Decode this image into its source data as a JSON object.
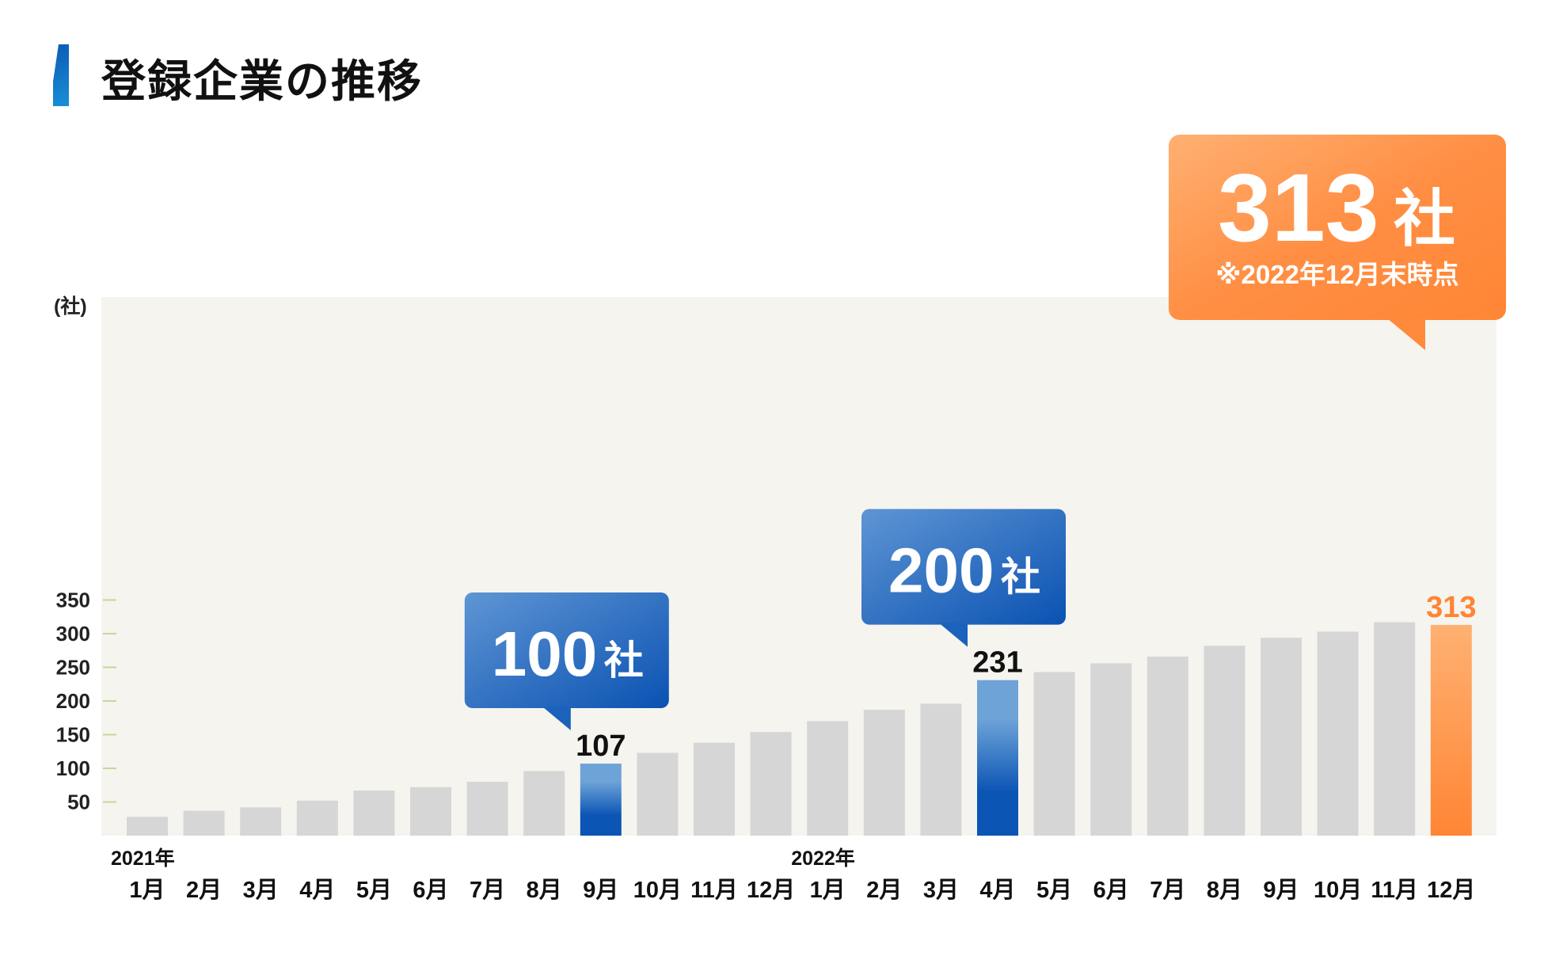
{
  "title": "登録企業の推移",
  "colors": {
    "plot_bg": "#f5f4ef",
    "bar_gray": "#d6d6d6",
    "bar_blue_top": "#6ea3d8",
    "bar_blue_bottom": "#0b55b5",
    "bar_orange_top": "#ffb172",
    "bar_orange_bottom": "#ff8534",
    "orange_label": "#ff8534",
    "tick_line": "#c9d49a"
  },
  "chart_data": {
    "type": "bar",
    "ylabel": "(社)",
    "ylim": [
      0,
      400
    ],
    "yticks": [
      50,
      100,
      150,
      200,
      250,
      300,
      350
    ],
    "year_labels": [
      {
        "index": 0,
        "label": "2021年"
      },
      {
        "index": 12,
        "label": "2022年"
      }
    ],
    "categories": [
      "1月",
      "2月",
      "3月",
      "4月",
      "5月",
      "6月",
      "7月",
      "8月",
      "9月",
      "10月",
      "11月",
      "12月",
      "1月",
      "2月",
      "3月",
      "4月",
      "5月",
      "6月",
      "7月",
      "8月",
      "9月",
      "10月",
      "11月",
      "12月"
    ],
    "values": [
      28,
      37,
      42,
      52,
      67,
      72,
      80,
      96,
      107,
      123,
      138,
      154,
      170,
      187,
      196,
      231,
      243,
      256,
      266,
      282,
      294,
      303,
      317,
      313
    ],
    "highlights": [
      {
        "index": 8,
        "color": "blue",
        "value_label": "107",
        "callout": {
          "number": "100",
          "unit": "社"
        }
      },
      {
        "index": 15,
        "color": "blue",
        "value_label": "231",
        "callout": {
          "number": "200",
          "unit": "社"
        }
      },
      {
        "index": 23,
        "color": "orange",
        "value_label": "313",
        "callout": {
          "number": "313",
          "unit": "社",
          "note": "※2022年12月末時点"
        }
      }
    ]
  }
}
